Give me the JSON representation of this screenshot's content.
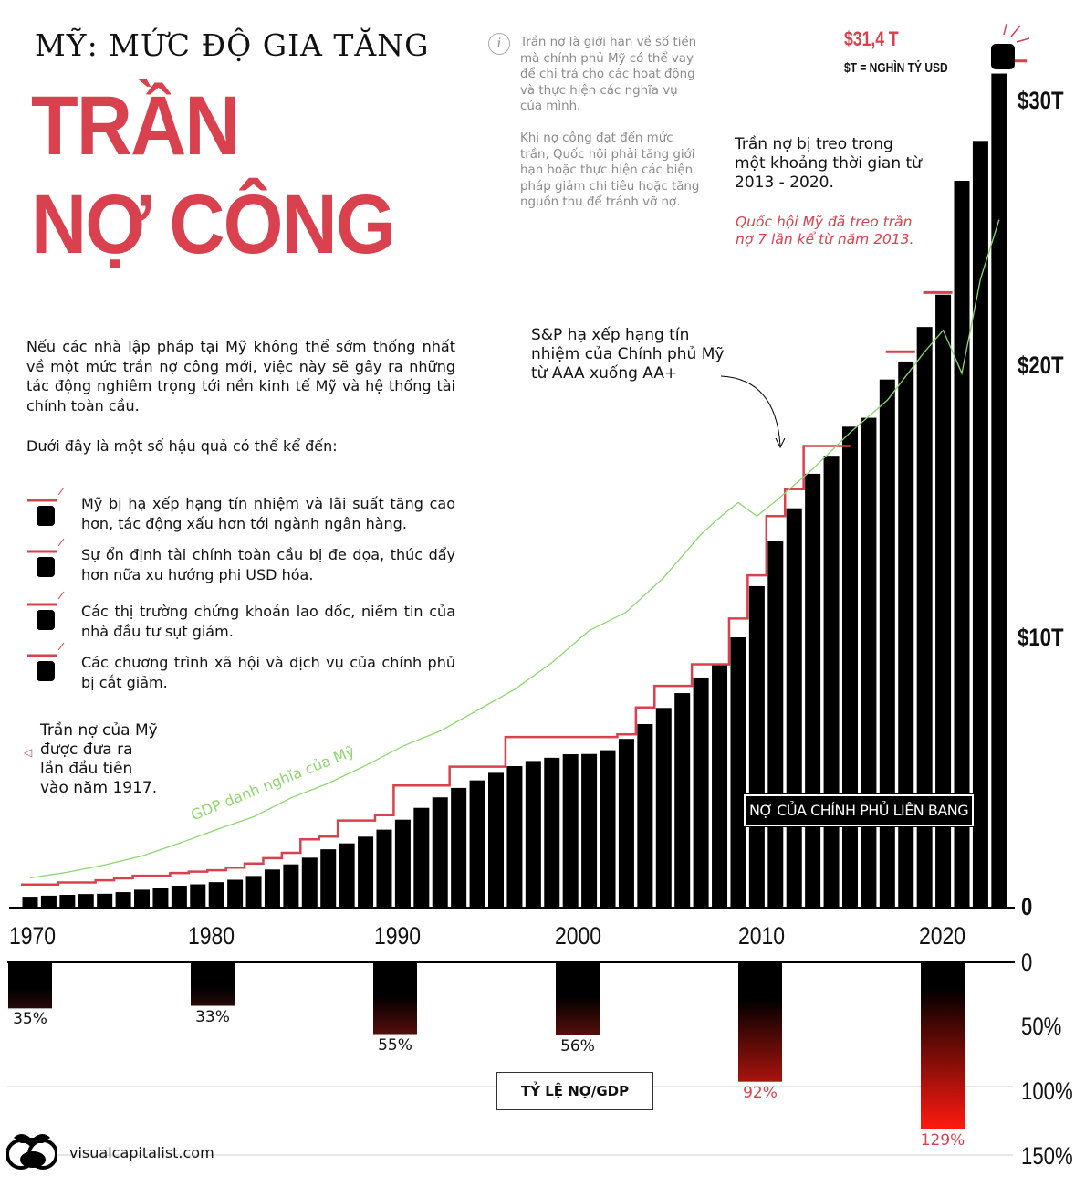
{
  "header": {
    "kicker": "MỸ: MỨC ĐỘ GIA TĂNG",
    "title_line1": "TRẦN",
    "title_line2": "NỢ CÔNG"
  },
  "info": {
    "icon": "info-icon",
    "p1": "Trần nợ là giới hạn về số tiền mà chính phủ Mỹ có thể vay để chi trả cho các hoạt động và thực hiện các nghĩa vụ của mình.",
    "p2": "Khi nợ công đạt đến mức trần, Quốc hội phải tăng giới hạn hoặc thực hiện các biện pháp giảm chi tiêu hoặc tăng nguồn thu để tránh vỡ nợ."
  },
  "intro": {
    "p1": "Nếu các nhà lập pháp tại Mỹ không thể sớm thống nhất về một mức trần nợ công mới, việc này sẽ gây ra những tác động nghiêm trọng tới nền kinh tế Mỹ và hệ thống tài chính toàn cầu.",
    "p2": "Dưới đây là một số hậu quả có thể kể đến:",
    "bullets": [
      "Mỹ bị hạ xếp hạng tín nhiệm và lãi suất tăng cao hơn, tác động xấu hơn tới ngành ngân hàng.",
      "Sự ổn định tài chính toàn cầu bị đe dọa, thúc dẩy hơn nữa xu hướng phi USD hóa.",
      "Các thị trường chứng khoán lao dốc, niềm tin của nhà đầu tư sụt giảm.",
      "Các chương trình xã hội và dịch vụ của chính phủ bị cắt giảm."
    ],
    "bullet_icon": "raised-fist-icon"
  },
  "annotations": {
    "current_ceiling": "$31,4 T",
    "unit_note": "$T = NGHÌN TỶ USD",
    "suspended": "Trần nợ bị treo trong một khoảng thời gian từ 2013 - 2020.",
    "suspended_red": "Quốc hội Mỹ đã treo trần nợ 7 lần kể từ năm 2013.",
    "downgrade": "S&P hạ xếp hạng tín nhiệm của Chính phủ Mỹ từ AAA xuống AA+",
    "first_ceiling": "Trần nợ của Mỹ được đưa ra lần đầu tiên vào năm 1917.",
    "gdp_label": "GDP danh nghĩa của Mỹ",
    "federal_debt_label": "NỢ CỦA CHÍNH PHỦ LIÊN BANG",
    "ratio_label": "TỶ LỆ NỢ/GDP"
  },
  "footer": {
    "source": "visualcapitalist.com"
  },
  "colors": {
    "accent_red": "#d9414e",
    "gdp_green": "#8fd66f",
    "bar": "#000000",
    "ratio_red": "#ff1a10"
  },
  "chart_data": [
    {
      "type": "bar",
      "title": "",
      "x_tick_labels": [
        "1970",
        "1980",
        "1990",
        "2000",
        "2010",
        "2020"
      ],
      "y_tick_labels": [
        "0",
        "$10T",
        "$20T",
        "$30T"
      ],
      "ylim": [
        0,
        32
      ],
      "unit": "$T",
      "series": [
        {
          "name": "NỢ CỦA CHÍNH PHỦ LIÊN BANG",
          "type": "bar",
          "x": [
            1970,
            1971,
            1972,
            1973,
            1974,
            1975,
            1976,
            1977,
            1978,
            1979,
            1980,
            1981,
            1982,
            1983,
            1984,
            1985,
            1986,
            1987,
            1988,
            1989,
            1990,
            1991,
            1992,
            1993,
            1994,
            1995,
            1996,
            1997,
            1998,
            1999,
            2000,
            2001,
            2002,
            2003,
            2004,
            2005,
            2006,
            2007,
            2008,
            2009,
            2010,
            2011,
            2012,
            2013,
            2014,
            2015,
            2016,
            2017,
            2018,
            2019,
            2020,
            2021,
            2022
          ],
          "values": [
            0.37,
            0.41,
            0.44,
            0.47,
            0.48,
            0.54,
            0.63,
            0.71,
            0.78,
            0.83,
            0.91,
            1.0,
            1.14,
            1.38,
            1.57,
            1.82,
            2.13,
            2.35,
            2.6,
            2.86,
            3.23,
            3.67,
            4.06,
            4.41,
            4.69,
            4.97,
            5.22,
            5.41,
            5.53,
            5.66,
            5.67,
            5.81,
            6.23,
            6.78,
            7.38,
            7.93,
            8.51,
            9.01,
            10.0,
            11.9,
            13.56,
            14.79,
            16.07,
            16.74,
            17.82,
            18.15,
            19.57,
            20.24,
            21.52,
            22.72,
            26.95,
            28.43,
            30.93
          ]
        },
        {
          "name": "debt ceiling",
          "type": "step",
          "x": [
            1970,
            1972,
            1974,
            1975,
            1976,
            1978,
            1979,
            1980,
            1981,
            1982,
            1983,
            1984,
            1985,
            1986,
            1987,
            1989,
            1990,
            1993,
            1996,
            2002,
            2003,
            2004,
            2006,
            2008,
            2009,
            2010,
            2011,
            2012,
            2013,
            2014.5
          ],
          "values": [
            0.82,
            0.9,
            0.98,
            1.05,
            1.15,
            1.25,
            1.3,
            1.35,
            1.45,
            1.6,
            1.8,
            2.0,
            2.5,
            2.6,
            3.2,
            3.4,
            4.5,
            5.2,
            6.3,
            6.4,
            7.4,
            8.2,
            9.0,
            10.7,
            12.3,
            14.5,
            15.5,
            17.1,
            17.1,
            17.1
          ],
          "isolated": [
            {
              "x": 2017,
              "value": 20.6
            },
            {
              "x": 2019,
              "value": 22.8
            },
            {
              "x": 2023,
              "value": 31.4
            }
          ]
        },
        {
          "name": "GDP danh nghĩa của Mỹ",
          "type": "line",
          "x": [
            1970,
            1972,
            1974,
            1976,
            1978,
            1980,
            1982,
            1984,
            1986,
            1988,
            1990,
            1992,
            1994,
            1996,
            1998,
            2000,
            2002,
            2004,
            2006,
            2007,
            2008,
            2009,
            2010,
            2012,
            2014,
            2016,
            2018,
            2019,
            2020,
            2021,
            2022
          ],
          "values": [
            1.07,
            1.28,
            1.55,
            1.88,
            2.35,
            2.86,
            3.34,
            4.04,
            4.58,
            5.24,
            5.96,
            6.52,
            7.29,
            8.07,
            9.06,
            10.25,
            10.94,
            12.22,
            13.82,
            14.45,
            15.0,
            14.5,
            15.05,
            16.25,
            17.6,
            18.8,
            20.6,
            21.4,
            19.8,
            23.3,
            25.5
          ]
        }
      ]
    },
    {
      "type": "bar",
      "title": "TỶ LỆ NỢ/GDP",
      "categories": [
        "1970",
        "1980",
        "1990",
        "2000",
        "2010",
        "2020"
      ],
      "values": [
        35,
        33,
        55,
        56,
        92,
        129
      ],
      "data_labels": [
        "35%",
        "33%",
        "55%",
        "56%",
        "92%",
        "129%"
      ],
      "y_tick_labels": [
        "0",
        "50%",
        "100%",
        "150%"
      ],
      "ylim": [
        0,
        150
      ],
      "inverted": true
    }
  ]
}
